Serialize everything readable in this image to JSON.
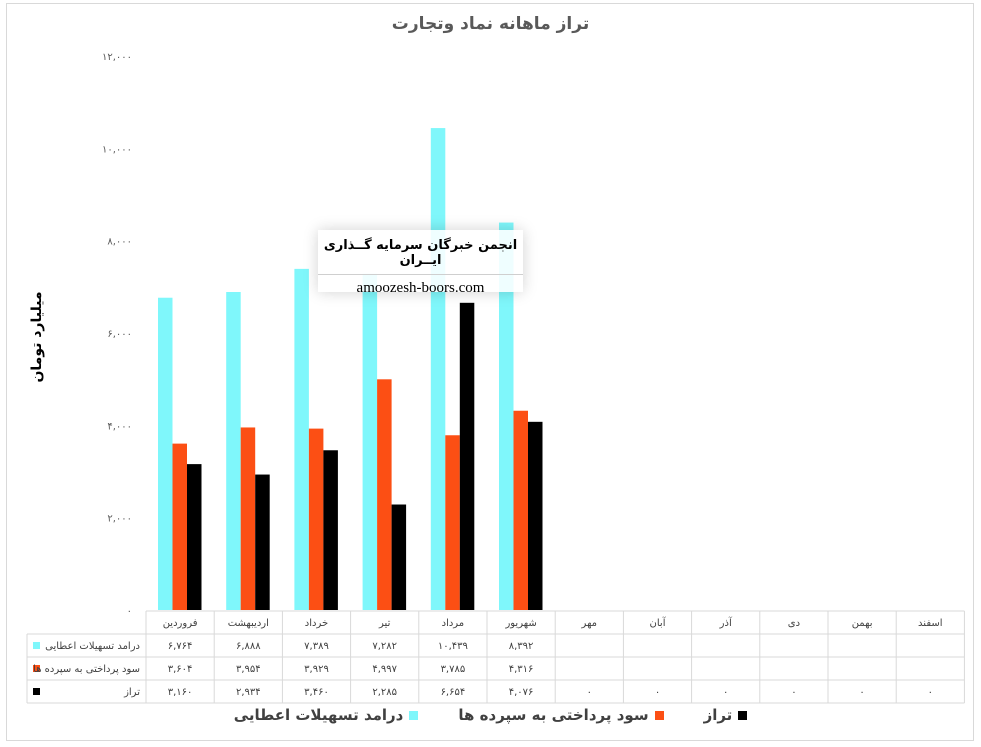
{
  "chart_data": {
    "type": "bar",
    "title": "تراز ماهانه نماد وتجارت",
    "ylabel": "میلیارد تومان",
    "ylim": [
      0,
      12000
    ],
    "yticks": [
      "۰",
      "۲,۰۰۰",
      "۴,۰۰۰",
      "۶,۰۰۰",
      "۸,۰۰۰",
      "۱۰,۰۰۰",
      "۱۲,۰۰۰"
    ],
    "categories": [
      "فروردین",
      "اردیبهشت",
      "خرداد",
      "تیر",
      "مرداد",
      "شهریور",
      "مهر",
      "آبان",
      "آذر",
      "دی",
      "بهمن",
      "اسفند"
    ],
    "series": [
      {
        "name": "درامد تسهیلات اعطایی",
        "table_name": "درامد تسهیلات اعطایی",
        "color": "#7ff7fb",
        "values": [
          6764,
          6888,
          7389,
          7282,
          10439,
          8392,
          null,
          null,
          null,
          null,
          null,
          null
        ],
        "labels": [
          "۶,۷۶۴",
          "۶,۸۸۸",
          "۷,۳۸۹",
          "۷,۲۸۲",
          "۱۰,۴۳۹",
          "۸,۳۹۲",
          "",
          "",
          "",
          "",
          "",
          ""
        ]
      },
      {
        "name": "سود پرداختی به سپرده ها",
        "table_name": "سود پرداختی به سپرده ها",
        "color": "#fc4f14",
        "values": [
          3604,
          3954,
          3929,
          4997,
          3785,
          4316,
          null,
          null,
          null,
          null,
          null,
          null
        ],
        "labels": [
          "۳,۶۰۴",
          "۳,۹۵۴",
          "۳,۹۲۹",
          "۴,۹۹۷",
          "۳,۷۸۵",
          "۴,۳۱۶",
          "",
          "",
          "",
          "",
          "",
          ""
        ]
      },
      {
        "name": "تراز",
        "table_name": "تراز",
        "color": "#000000",
        "values": [
          3160,
          2934,
          3460,
          2285,
          6654,
          4076,
          0,
          0,
          0,
          0,
          0,
          0
        ],
        "labels": [
          "۳,۱۶۰",
          "۲,۹۳۴",
          "۳,۴۶۰",
          "۲,۲۸۵",
          "۶,۶۵۴",
          "۴,۰۷۶",
          "۰",
          "۰",
          "۰",
          "۰",
          "۰",
          "۰"
        ]
      }
    ],
    "grid": false,
    "legend": "bottom",
    "data_table": true
  },
  "watermark": {
    "line1": "انجمن خبرگان سرمایه گــذاری ایــران",
    "line2": "amoozesh-boors.com"
  }
}
